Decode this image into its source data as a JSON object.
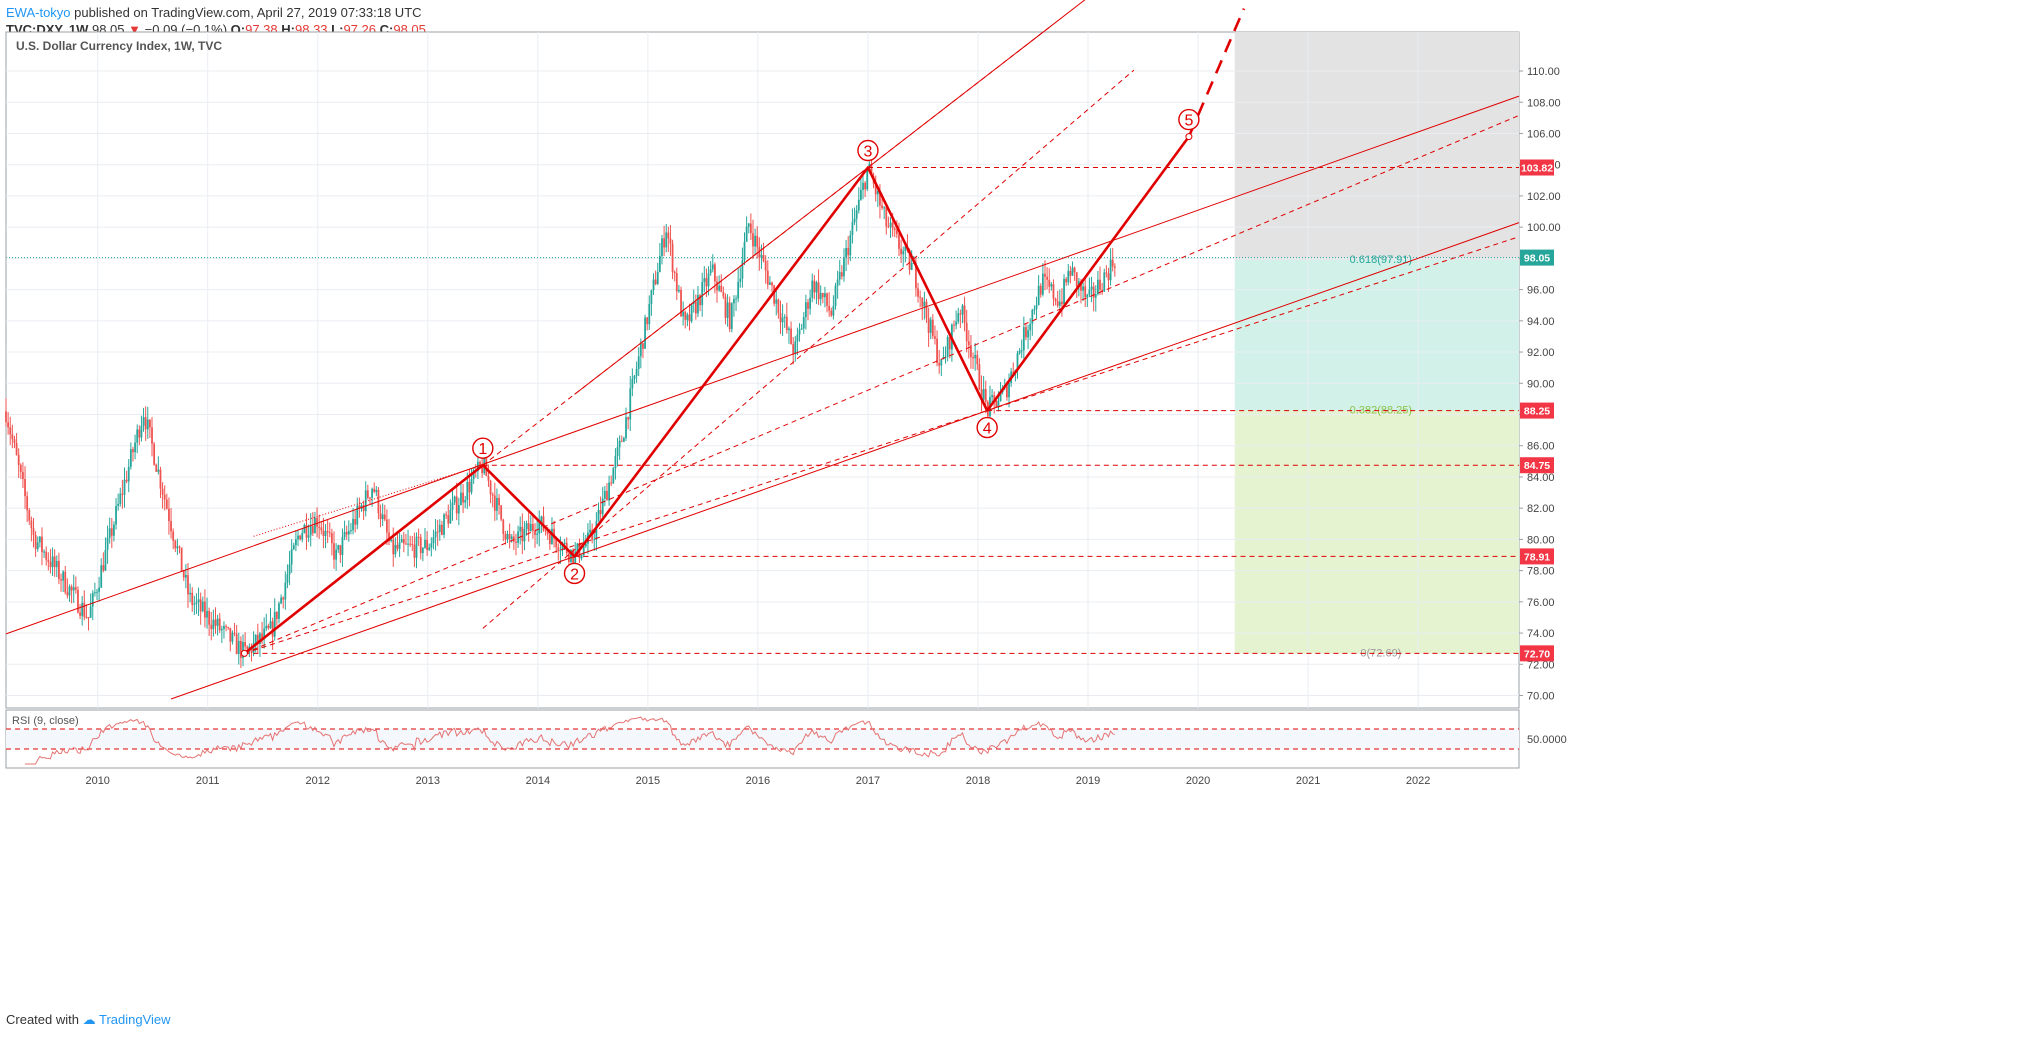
{
  "header": {
    "author": "EWA-tokyo",
    "published": "published on TradingView.com, April 27, 2019 07:33:18 UTC",
    "symbol": "TVC:DXY, 1W",
    "last": "98.05",
    "change": "−0.09 (−0.1%)",
    "open_label": "O:",
    "open": "97.38",
    "high_label": "H:",
    "high": "98.33",
    "low_label": "L:",
    "low": "97.26",
    "close_label": "C:",
    "close": "98.05"
  },
  "footer": {
    "created_with": "Created with",
    "brand": "TradingView"
  },
  "colors": {
    "up": "#26a69a",
    "down": "#ef5350",
    "annotation": "#e00000",
    "grid": "#e9edf2",
    "fib_top": "#e3e3e3",
    "fib_mid": "#d2f2e9",
    "fib_low": "#e6f3d1"
  },
  "chart_data": {
    "type": "candlestick",
    "title": "U.S. Dollar Currency Index, 1W, TVC",
    "x_range": [
      "2009-03",
      "2022-12"
    ],
    "x_ticks": [
      "2010",
      "2011",
      "2012",
      "2013",
      "2014",
      "2015",
      "2016",
      "2017",
      "2018",
      "2019",
      "2020",
      "2021",
      "2022"
    ],
    "ylim": [
      69.2,
      112.5
    ],
    "y_ticks": [
      "70.00",
      "72.00",
      "74.00",
      "76.00",
      "78.00",
      "80.00",
      "82.00",
      "84.00",
      "86.00",
      "88.00",
      "90.00",
      "92.00",
      "94.00",
      "96.00",
      "98.00",
      "100.00",
      "102.00",
      "104.00",
      "106.00",
      "108.00",
      "110.00"
    ],
    "last_price_line": 98.05,
    "price_path": [
      [
        "2009-03",
        88.2
      ],
      [
        "2009-06",
        80.2
      ],
      [
        "2009-12",
        75.0
      ],
      [
        "2010-06",
        88.2
      ],
      [
        "2010-11",
        76.2
      ],
      [
        "2011-05",
        72.7
      ],
      [
        "2011-08",
        74.2
      ],
      [
        "2011-11",
        80.5
      ],
      [
        "2012-01",
        81.3
      ],
      [
        "2012-03",
        78.9
      ],
      [
        "2012-07",
        83.5
      ],
      [
        "2012-09",
        79.3
      ],
      [
        "2013-01",
        79.6
      ],
      [
        "2013-07",
        84.75
      ],
      [
        "2013-10",
        79.6
      ],
      [
        "2014-01",
        81.1
      ],
      [
        "2014-05",
        78.91
      ],
      [
        "2014-07",
        80.2
      ],
      [
        "2014-10",
        86.0
      ],
      [
        "2015-03",
        100.0
      ],
      [
        "2015-05",
        93.5
      ],
      [
        "2015-08",
        97.2
      ],
      [
        "2015-10",
        94.0
      ],
      [
        "2015-12",
        100.2
      ],
      [
        "2016-05",
        92.0
      ],
      [
        "2016-07",
        96.5
      ],
      [
        "2016-09",
        94.5
      ],
      [
        "2017-01",
        103.82
      ],
      [
        "2017-03",
        100.2
      ],
      [
        "2017-06",
        97.2
      ],
      [
        "2017-09",
        91.0
      ],
      [
        "2017-11",
        95.0
      ],
      [
        "2018-02",
        88.25
      ],
      [
        "2018-04",
        89.5
      ],
      [
        "2018-08",
        96.5
      ],
      [
        "2018-10",
        95.2
      ],
      [
        "2018-11",
        97.3
      ],
      [
        "2019-01",
        95.2
      ],
      [
        "2019-03",
        97.0
      ],
      [
        "2019-04",
        98.05
      ]
    ],
    "wave_labels": [
      {
        "label": "1",
        "date": "2013-07",
        "price": 84.75
      },
      {
        "label": "2",
        "date": "2014-05",
        "price": 78.91
      },
      {
        "label": "3",
        "date": "2017-01",
        "price": 103.82
      },
      {
        "label": "4",
        "date": "2018-02",
        "price": 88.25
      },
      {
        "label": "5",
        "date": "2019-12",
        "price": 105.8
      }
    ],
    "wave_path": [
      [
        "2011-05",
        72.7
      ],
      [
        "2013-07",
        84.75
      ],
      [
        "2014-05",
        78.91
      ],
      [
        "2017-01",
        103.82
      ],
      [
        "2018-02",
        88.25
      ],
      [
        "2019-12",
        105.8
      ]
    ],
    "wave_projection": [
      [
        "2019-12",
        105.8
      ],
      [
        "2020-06",
        114.0
      ]
    ],
    "horizontal_levels": [
      {
        "price": 103.82,
        "label": "103.82",
        "from": "2017-01"
      },
      {
        "price": 88.25,
        "label": "88.25",
        "from": "2018-02"
      },
      {
        "price": 84.75,
        "label": "84.75",
        "from": "2013-07"
      },
      {
        "price": 78.91,
        "label": "78.91",
        "from": "2014-05"
      },
      {
        "price": 72.7,
        "label": "72.70",
        "from": "2011-05"
      }
    ],
    "price_badges": [
      "103.82",
      "98.05",
      "88.25",
      "84.75",
      "78.91",
      "72.70"
    ],
    "fib_zone": {
      "from": "2020-05",
      "to": "2022-12",
      "levels": [
        {
          "price": 72.69,
          "label": "0(72.69)"
        },
        {
          "price": 88.25,
          "label": "0.382(88.25)"
        },
        {
          "price": 97.91,
          "label": "0.618(97.91)"
        },
        {
          "price": 112.5,
          "label": ""
        }
      ]
    },
    "channels": [
      {
        "style": "solid",
        "p1": [
          "2014-05",
          78.91
        ],
        "p2": [
          "2018-02",
          88.25
        ],
        "from": "2010-09",
        "to": "2022-12"
      },
      {
        "style": "solid",
        "p1": [
          "2013-07",
          84.75
        ],
        "p2": [
          "2017-01",
          103.82
        ],
        "from": "2014-05",
        "to": "2022-12"
      },
      {
        "style": "solid",
        "p1": [
          "2009-03",
          73.95
        ],
        "p2": [
          "2019-03",
          99.0
        ],
        "from": "2009-03",
        "to": "2022-12"
      },
      {
        "style": "dashed",
        "p1": [
          "2011-05",
          72.7
        ],
        "p2": [
          "2018-02",
          88.25
        ],
        "from": "2011-05",
        "to": "2022-12"
      },
      {
        "style": "dashed",
        "p1": [
          "2011-05",
          72.7
        ],
        "p2": [
          "2019-03",
          96.0
        ],
        "from": "2011-05",
        "to": "2022-12"
      },
      {
        "style": "dotted",
        "p1": [
          "2011-06",
          80.2
        ],
        "p2": [
          "2013-07",
          84.75
        ],
        "from": "2011-06",
        "to": "2013-07"
      },
      {
        "style": "dashed",
        "p1": [
          "2013-07",
          84.75
        ],
        "p2": [
          "2017-01",
          103.82
        ],
        "from": "2013-07",
        "to": "2018-09"
      },
      {
        "style": "dashed",
        "p1": [
          "2013-07",
          74.3
        ],
        "p2": [
          "2018-02",
          102.0
        ],
        "from": "2013-07",
        "to": "2019-06"
      }
    ],
    "rsi": {
      "label": "RSI (9, close)",
      "tick": "50.0000",
      "levels": [
        70,
        30
      ],
      "ylim": [
        0,
        100
      ]
    }
  }
}
